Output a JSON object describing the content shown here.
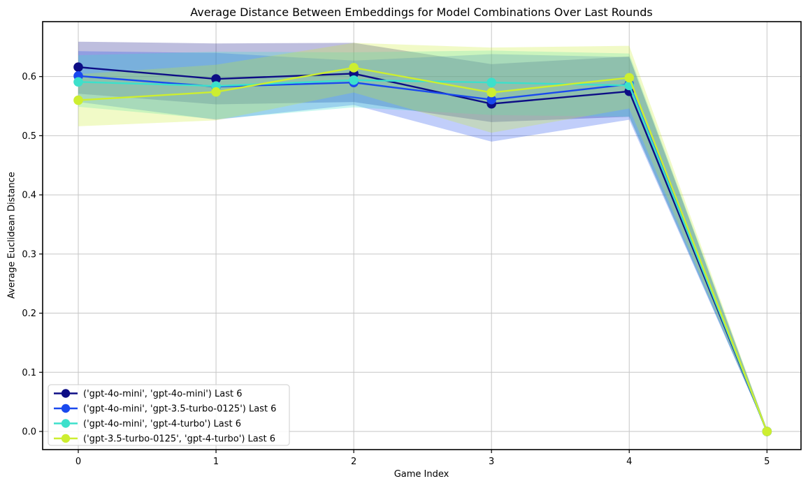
{
  "chart_data": {
    "type": "line",
    "title": "Average Distance Between Embeddings for Model Combinations Over Last Rounds",
    "xlabel": "Game Index",
    "ylabel": "Average Euclidean Distance",
    "x": [
      0,
      1,
      2,
      3,
      4,
      5
    ],
    "xtick_labels": [
      "0",
      "1",
      "2",
      "3",
      "4",
      "5"
    ],
    "ytick_values": [
      0.0,
      0.1,
      0.2,
      0.3,
      0.4,
      0.5,
      0.6
    ],
    "ytick_labels": [
      "0.0",
      "0.1",
      "0.2",
      "0.3",
      "0.4",
      "0.5",
      "0.6"
    ],
    "xlim": [
      -0.26,
      5.25
    ],
    "ylim": [
      -0.031,
      0.693
    ],
    "grid": true,
    "grid_color": "#c6c6c6",
    "axis_color": "#000000",
    "legend_position": "lower-left",
    "band_alpha": 0.27,
    "series": [
      {
        "name": "('gpt-4o-mini', 'gpt-4o-mini') Last 6",
        "color": "#0d0d85",
        "values": [
          0.616,
          0.596,
          0.605,
          0.554,
          0.575,
          0.0
        ],
        "band_upper": [
          0.659,
          0.656,
          0.657,
          0.621,
          0.634,
          0.004
        ],
        "band_lower": [
          0.571,
          0.553,
          0.557,
          0.523,
          0.532,
          0.0
        ]
      },
      {
        "name": "('gpt-4o-mini', 'gpt-3.5-turbo-0125') Last 6",
        "color": "#1a49ee",
        "values": [
          0.601,
          0.583,
          0.59,
          0.561,
          0.587,
          0.0
        ],
        "band_upper": [
          0.643,
          0.64,
          0.627,
          0.638,
          0.633,
          0.004
        ],
        "band_lower": [
          0.557,
          0.527,
          0.552,
          0.49,
          0.527,
          0.0
        ]
      },
      {
        "name": "('gpt-4o-mini', 'gpt-4-turbo') Last 6",
        "color": "#3ce0cb",
        "values": [
          0.591,
          0.584,
          0.594,
          0.59,
          0.585,
          0.0
        ],
        "band_upper": [
          0.636,
          0.642,
          0.641,
          0.644,
          0.639,
          0.004
        ],
        "band_lower": [
          0.549,
          0.528,
          0.548,
          0.535,
          0.532,
          0.0
        ]
      },
      {
        "name": "('gpt-3.5-turbo-0125', 'gpt-4-turbo') Last 6",
        "color": "#cdee30",
        "values": [
          0.56,
          0.574,
          0.615,
          0.573,
          0.598,
          0.0
        ],
        "band_upper": [
          0.604,
          0.62,
          0.657,
          0.649,
          0.652,
          0.004
        ],
        "band_lower": [
          0.516,
          0.526,
          0.573,
          0.505,
          0.546,
          0.0
        ]
      }
    ]
  }
}
